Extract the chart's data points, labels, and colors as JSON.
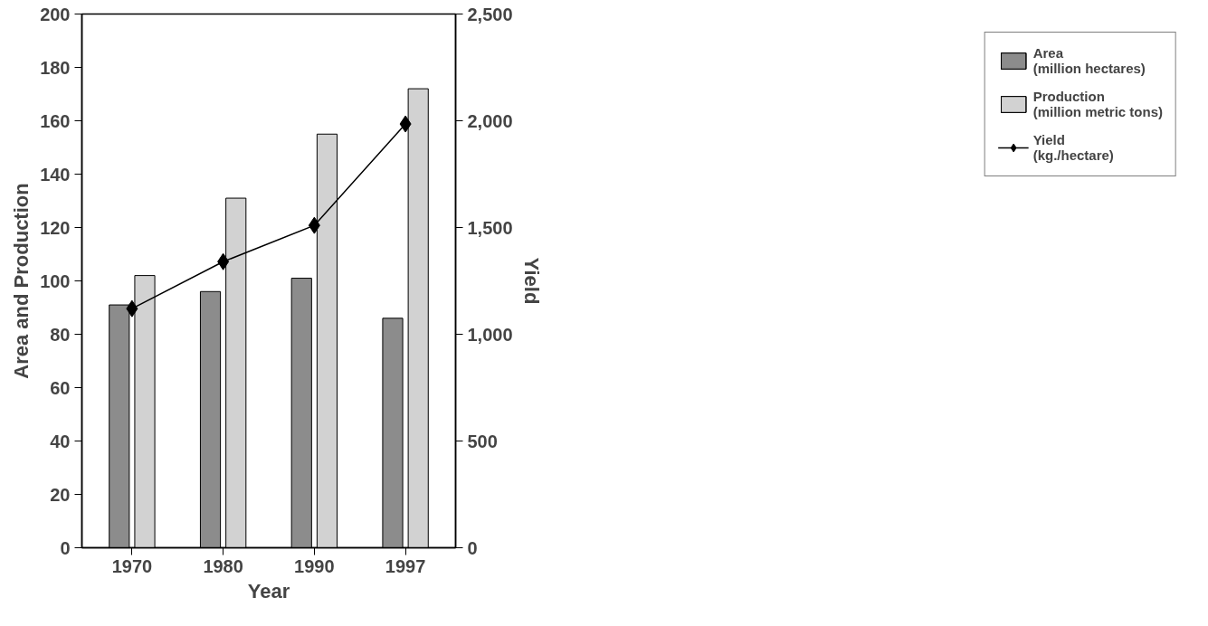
{
  "chart_data": {
    "type": "bar",
    "xlabel": "Year",
    "ylabel": "Area and Production",
    "y2label": "Yield",
    "categories": [
      "1970",
      "1980",
      "1990",
      "1997"
    ],
    "series": [
      {
        "name": "Area\n(million hectares)",
        "color": "#8c8c8c",
        "values": [
          91,
          96,
          101,
          86
        ]
      },
      {
        "name": "Production\n(million metric tons)",
        "color": "#d2d2d2",
        "values": [
          102,
          131,
          155,
          172
        ]
      },
      {
        "name": "Yield\n(kg./hectare)",
        "color": "#000000",
        "type": "line",
        "axis": "y2",
        "marker": "diamond",
        "values": [
          1120,
          1340,
          1510,
          1985
        ]
      }
    ],
    "ylim": [
      0,
      200
    ],
    "yticks": [
      0,
      20,
      40,
      60,
      80,
      100,
      120,
      140,
      160,
      180,
      200
    ],
    "y2lim": [
      0,
      2500
    ],
    "y2ticks": [
      0,
      500,
      {
        "value": 1000,
        "label": "1,000"
      },
      {
        "value": 1500,
        "label": "1,500"
      },
      {
        "value": 2000,
        "label": "2,000"
      },
      {
        "value": 2500,
        "label": "2,500"
      }
    ],
    "grid": false,
    "legend": "right"
  }
}
